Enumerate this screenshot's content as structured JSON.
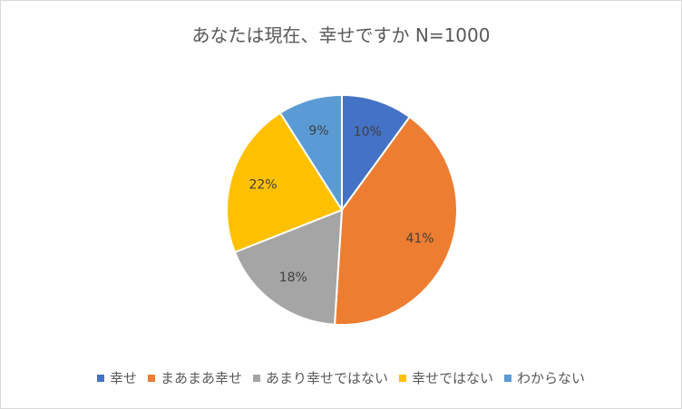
{
  "chart_data": {
    "type": "pie",
    "title": "あなたは現在、幸せですか N=1000",
    "categories": [
      "幸せ",
      "まあまあ幸せ",
      "あまり幸せではない",
      "幸せではない",
      "わからない"
    ],
    "values": [
      10,
      41,
      18,
      22,
      9
    ],
    "labels": [
      "10%",
      "41%",
      "18%",
      "22%",
      "9%"
    ],
    "colors": [
      "#4472c4",
      "#ed7d31",
      "#a5a5a5",
      "#ffc000",
      "#5b9bd5"
    ],
    "legend_position": "bottom",
    "start_angle": "12-o'clock, clockwise"
  }
}
